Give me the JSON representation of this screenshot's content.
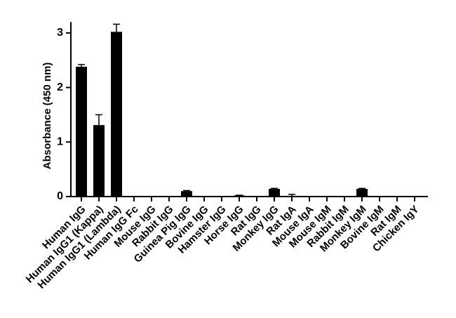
{
  "chart_data": {
    "type": "bar",
    "y_label": "Absorbance (450 nm)",
    "categories": [
      "Human IgG",
      "Human IgG1 (Kappa)",
      "Human IgG1 (Lambda)",
      "Human IgG Fc",
      "Mouse IgG",
      "Rabbit IgG",
      "Guinea Pig IgG",
      "Bovine IgG",
      "Hamster IgG",
      "Horse IgG",
      "Rat IgG",
      "Monkey IgG",
      "Rat IgA",
      "Mouse IgA",
      "Mouse IgM",
      "Rabbit IgM",
      "Monkey IgM",
      "Bovine IgM",
      "Rat IgM",
      "Chicken IgY"
    ],
    "values": [
      2.38,
      1.31,
      3.02,
      0,
      0,
      0,
      0.1,
      0.005,
      0.005,
      0.02,
      0,
      0.14,
      0.01,
      0,
      0,
      0.005,
      0.14,
      0,
      0.01,
      0
    ],
    "errors": [
      0.04,
      0.19,
      0.14,
      0,
      0,
      0,
      0.01,
      0,
      0,
      0.005,
      0,
      0.01,
      0.03,
      0,
      0,
      0,
      0.01,
      0,
      0,
      0
    ],
    "color": "#000000",
    "ylim": [
      0,
      3.2
    ],
    "yticks": [
      0,
      1,
      2,
      3
    ]
  }
}
